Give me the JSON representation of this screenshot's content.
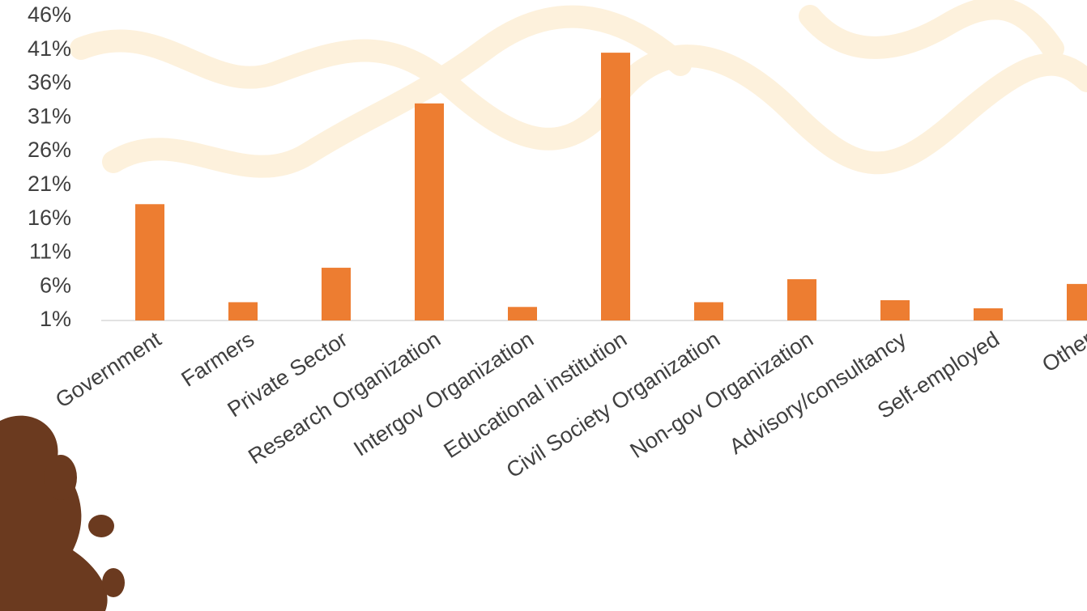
{
  "chart_data": {
    "type": "bar",
    "categories": [
      "Government",
      "Farmers",
      "Private Sector",
      "Research Organization",
      "Intergov Organization",
      "Educational institution",
      "Civil Society Organization",
      "Non-gov Organization",
      "Advisory/consultancy",
      "Self-employed",
      "Other"
    ],
    "values": [
      18.2,
      3.7,
      8.8,
      33.1,
      3.0,
      40.6,
      3.7,
      7.1,
      4.0,
      2.8,
      6.4
    ],
    "color": "#ed7d31",
    "ylim": [
      1,
      46
    ],
    "yticks": [
      {
        "value": 1,
        "label": "1%"
      },
      {
        "value": 6,
        "label": "6%"
      },
      {
        "value": 11,
        "label": "11%"
      },
      {
        "value": 16,
        "label": "16%"
      },
      {
        "value": 21,
        "label": "21%"
      },
      {
        "value": 26,
        "label": "26%"
      },
      {
        "value": 31,
        "label": "31%"
      },
      {
        "value": 36,
        "label": "36%"
      },
      {
        "value": 41,
        "label": "41%"
      },
      {
        "value": 46,
        "label": "46%"
      }
    ],
    "grid": false
  }
}
